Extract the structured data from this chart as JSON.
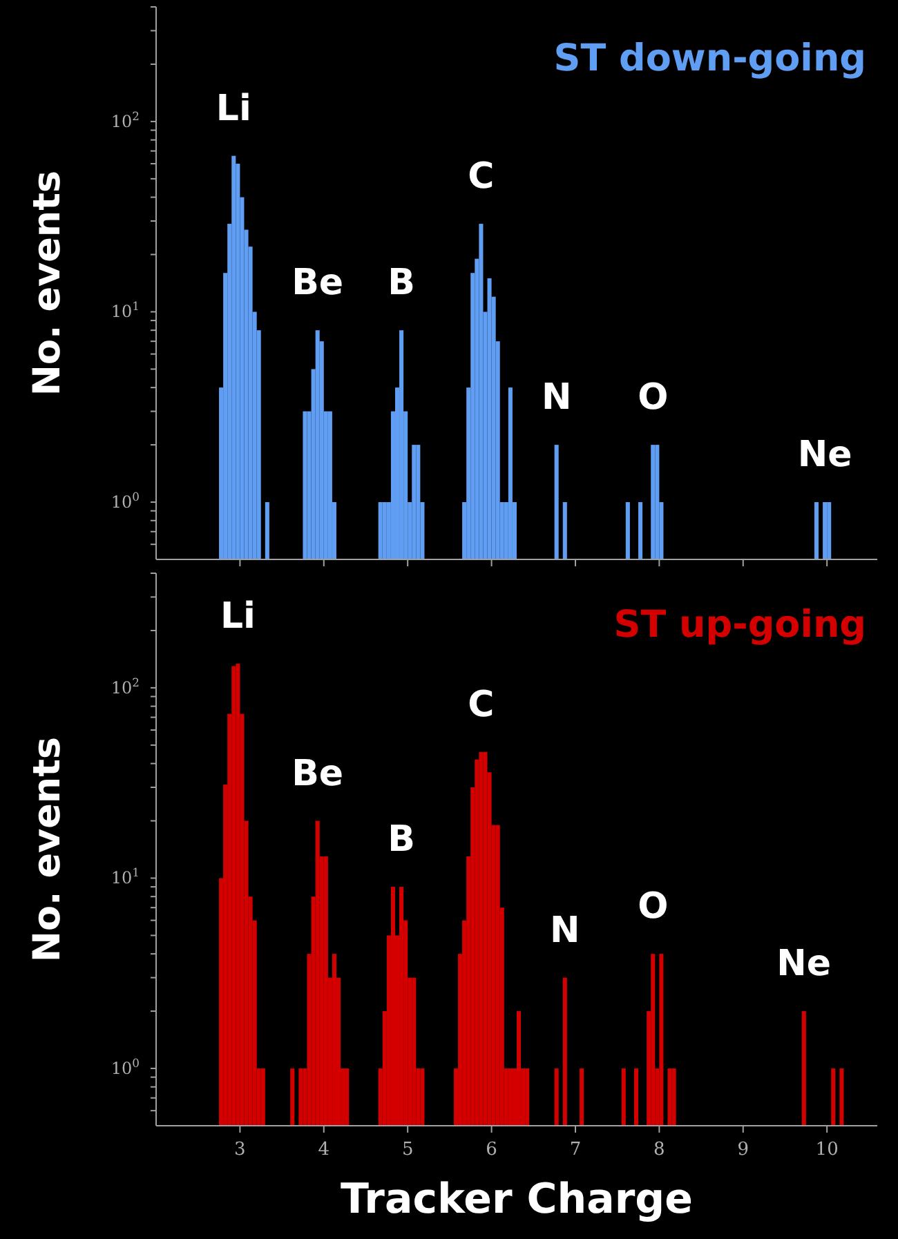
{
  "chart_data": [
    {
      "type": "histogram",
      "title": "ST down-going",
      "ylabel": "No. events",
      "color": "#5f9ef2",
      "log": true,
      "tick_labels": "y",
      "xlim": [
        2.0,
        10.6
      ],
      "ylim": [
        0.5,
        400
      ],
      "xticks": [
        3,
        4,
        5,
        6,
        7,
        8,
        9,
        10
      ],
      "yticks": [
        {
          "value": 0.6,
          "label": null
        },
        {
          "value": 0.7,
          "label": null
        },
        {
          "value": 0.8,
          "label": null
        },
        {
          "value": 0.9,
          "label": null
        },
        {
          "value": 1,
          "label": "10$^{0}$"
        },
        {
          "value": 2,
          "label": null
        },
        {
          "value": 3,
          "label": null
        },
        {
          "value": 4,
          "label": null
        },
        {
          "value": 5,
          "label": null
        },
        {
          "value": 6,
          "label": null
        },
        {
          "value": 7,
          "label": null
        },
        {
          "value": 8,
          "label": null
        },
        {
          "value": 9,
          "label": null
        },
        {
          "value": 10,
          "label": "10$^{1}$"
        },
        {
          "value": 20,
          "label": null
        },
        {
          "value": 30,
          "label": null
        },
        {
          "value": 40,
          "label": null
        },
        {
          "value": 50,
          "label": null
        },
        {
          "value": 60,
          "label": null
        },
        {
          "value": 70,
          "label": null
        },
        {
          "value": 80,
          "label": null
        },
        {
          "value": 90,
          "label": null
        },
        {
          "value": 100,
          "label": "10$^{2}$"
        },
        {
          "value": 200,
          "label": null
        },
        {
          "value": 300,
          "label": null
        },
        {
          "value": 400,
          "label": null
        }
      ],
      "bins": [
        2.75,
        2.8,
        2.85,
        2.9,
        2.95,
        3.0,
        3.05,
        3.1,
        3.15,
        3.2,
        3.25,
        3.3,
        3.35,
        3.75,
        3.8,
        3.85,
        3.9,
        3.95,
        4.0,
        4.05,
        4.1,
        4.15,
        4.65,
        4.7,
        4.75,
        4.8,
        4.85,
        4.9,
        4.95,
        5.0,
        5.05,
        5.1,
        5.15,
        5.2,
        5.65,
        5.7,
        5.75,
        5.8,
        5.85,
        5.9,
        5.95,
        6.0,
        6.05,
        6.1,
        6.15,
        6.2,
        6.25,
        6.3,
        6.75,
        6.8,
        6.85,
        6.9,
        7.6,
        7.65,
        7.75,
        7.8,
        7.9,
        7.95,
        8.0,
        8.05,
        9.85,
        9.9,
        9.95,
        10.0,
        10.05
      ],
      "values": [
        4,
        16,
        29,
        66,
        60,
        40,
        27,
        22,
        10,
        8,
        null,
        1,
        null,
        3,
        3,
        5,
        8,
        7,
        3,
        3,
        1,
        null,
        1,
        1,
        1,
        3,
        4,
        8,
        3,
        1,
        2,
        2,
        1,
        null,
        1,
        4,
        16,
        19,
        29,
        10,
        15,
        12,
        7,
        1,
        1,
        4,
        1,
        null,
        2,
        null,
        1,
        null,
        1,
        null,
        1,
        null,
        2,
        2,
        1,
        null,
        1,
        null,
        1,
        1
      ],
      "annotations": [
        {
          "text": "Li",
          "x": 2.925,
          "y": 66
        },
        {
          "text": "Be",
          "x": 3.925,
          "y": 8
        },
        {
          "text": "B",
          "x": 4.925,
          "y": 8
        },
        {
          "text": "C",
          "x": 5.875,
          "y": 29
        },
        {
          "text": "N",
          "x": 6.775,
          "y": 2
        },
        {
          "text": "O",
          "x": 7.925,
          "y": 2
        },
        {
          "text": "Ne",
          "x": 9.975,
          "y": 1
        }
      ]
    },
    {
      "type": "histogram",
      "title": "ST up-going",
      "ylabel": "No. events",
      "xlabel": "Tracker Charge",
      "color": "#d40000",
      "log": true,
      "xlim": [
        2.0,
        10.6
      ],
      "ylim": [
        0.5,
        400
      ],
      "xticks": [
        3,
        4,
        5,
        6,
        7,
        8,
        9,
        10
      ],
      "yticks": [
        {
          "value": 0.6,
          "label": null
        },
        {
          "value": 0.7,
          "label": null
        },
        {
          "value": 0.8,
          "label": null
        },
        {
          "value": 0.9,
          "label": null
        },
        {
          "value": 1,
          "label": "10$^{0}$"
        },
        {
          "value": 2,
          "label": null
        },
        {
          "value": 3,
          "label": null
        },
        {
          "value": 4,
          "label": null
        },
        {
          "value": 5,
          "label": null
        },
        {
          "value": 6,
          "label": null
        },
        {
          "value": 7,
          "label": null
        },
        {
          "value": 8,
          "label": null
        },
        {
          "value": 9,
          "label": null
        },
        {
          "value": 10,
          "label": "10$^{1}$"
        },
        {
          "value": 20,
          "label": null
        },
        {
          "value": 30,
          "label": null
        },
        {
          "value": 40,
          "label": null
        },
        {
          "value": 50,
          "label": null
        },
        {
          "value": 60,
          "label": null
        },
        {
          "value": 70,
          "label": null
        },
        {
          "value": 80,
          "label": null
        },
        {
          "value": 90,
          "label": null
        },
        {
          "value": 100,
          "label": "10$^{2}$"
        },
        {
          "value": 200,
          "label": null
        },
        {
          "value": 300,
          "label": null
        },
        {
          "value": 400,
          "label": null
        }
      ],
      "bins": [
        2.75,
        2.8,
        2.85,
        2.9,
        2.95,
        3.0,
        3.05,
        3.1,
        3.15,
        3.2,
        3.25,
        3.3,
        3.6,
        3.65,
        3.7,
        3.75,
        3.8,
        3.85,
        3.9,
        3.95,
        4.0,
        4.05,
        4.1,
        4.15,
        4.2,
        4.25,
        4.3,
        4.65,
        4.7,
        4.75,
        4.8,
        4.85,
        4.9,
        4.95,
        5.0,
        5.05,
        5.1,
        5.15,
        5.2,
        5.55,
        5.6,
        5.65,
        5.7,
        5.75,
        5.8,
        5.85,
        5.9,
        5.95,
        6.0,
        6.05,
        6.1,
        6.15,
        6.2,
        6.25,
        6.3,
        6.35,
        6.4,
        6.45,
        6.75,
        6.8,
        6.85,
        6.9,
        7.05,
        7.1,
        7.55,
        7.6,
        7.7,
        7.75,
        7.85,
        7.9,
        7.95,
        8.0,
        8.05,
        8.1,
        8.15,
        8.2,
        9.7,
        9.75,
        10.05,
        10.1,
        10.15,
        10.2
      ],
      "values": [
        10,
        31,
        73,
        130,
        134,
        73,
        20,
        8,
        6,
        1,
        1,
        null,
        1,
        null,
        1,
        1,
        4,
        8,
        20,
        13,
        13,
        3,
        4,
        3,
        1,
        1,
        null,
        1,
        2,
        5,
        9,
        5,
        9,
        6,
        3,
        3,
        1,
        1,
        null,
        1,
        4,
        6,
        13,
        30,
        42,
        46,
        46,
        36,
        19,
        19,
        7,
        1,
        1,
        1,
        2,
        1,
        1,
        null,
        1,
        null,
        3,
        null,
        1,
        null,
        1,
        null,
        1,
        null,
        2,
        4,
        1,
        4,
        null,
        1,
        1,
        null,
        2,
        null,
        1,
        null,
        1
      ],
      "annotations": [
        {
          "text": "Li",
          "x": 2.975,
          "y": 134
        },
        {
          "text": "Be",
          "x": 3.925,
          "y": 20
        },
        {
          "text": "B",
          "x": 4.925,
          "y": 9
        },
        {
          "text": "C",
          "x": 5.875,
          "y": 46
        },
        {
          "text": "N",
          "x": 6.875,
          "y": 3
        },
        {
          "text": "O",
          "x": 7.925,
          "y": 4
        },
        {
          "text": "Ne",
          "x": 9.725,
          "y": 2
        }
      ]
    }
  ]
}
